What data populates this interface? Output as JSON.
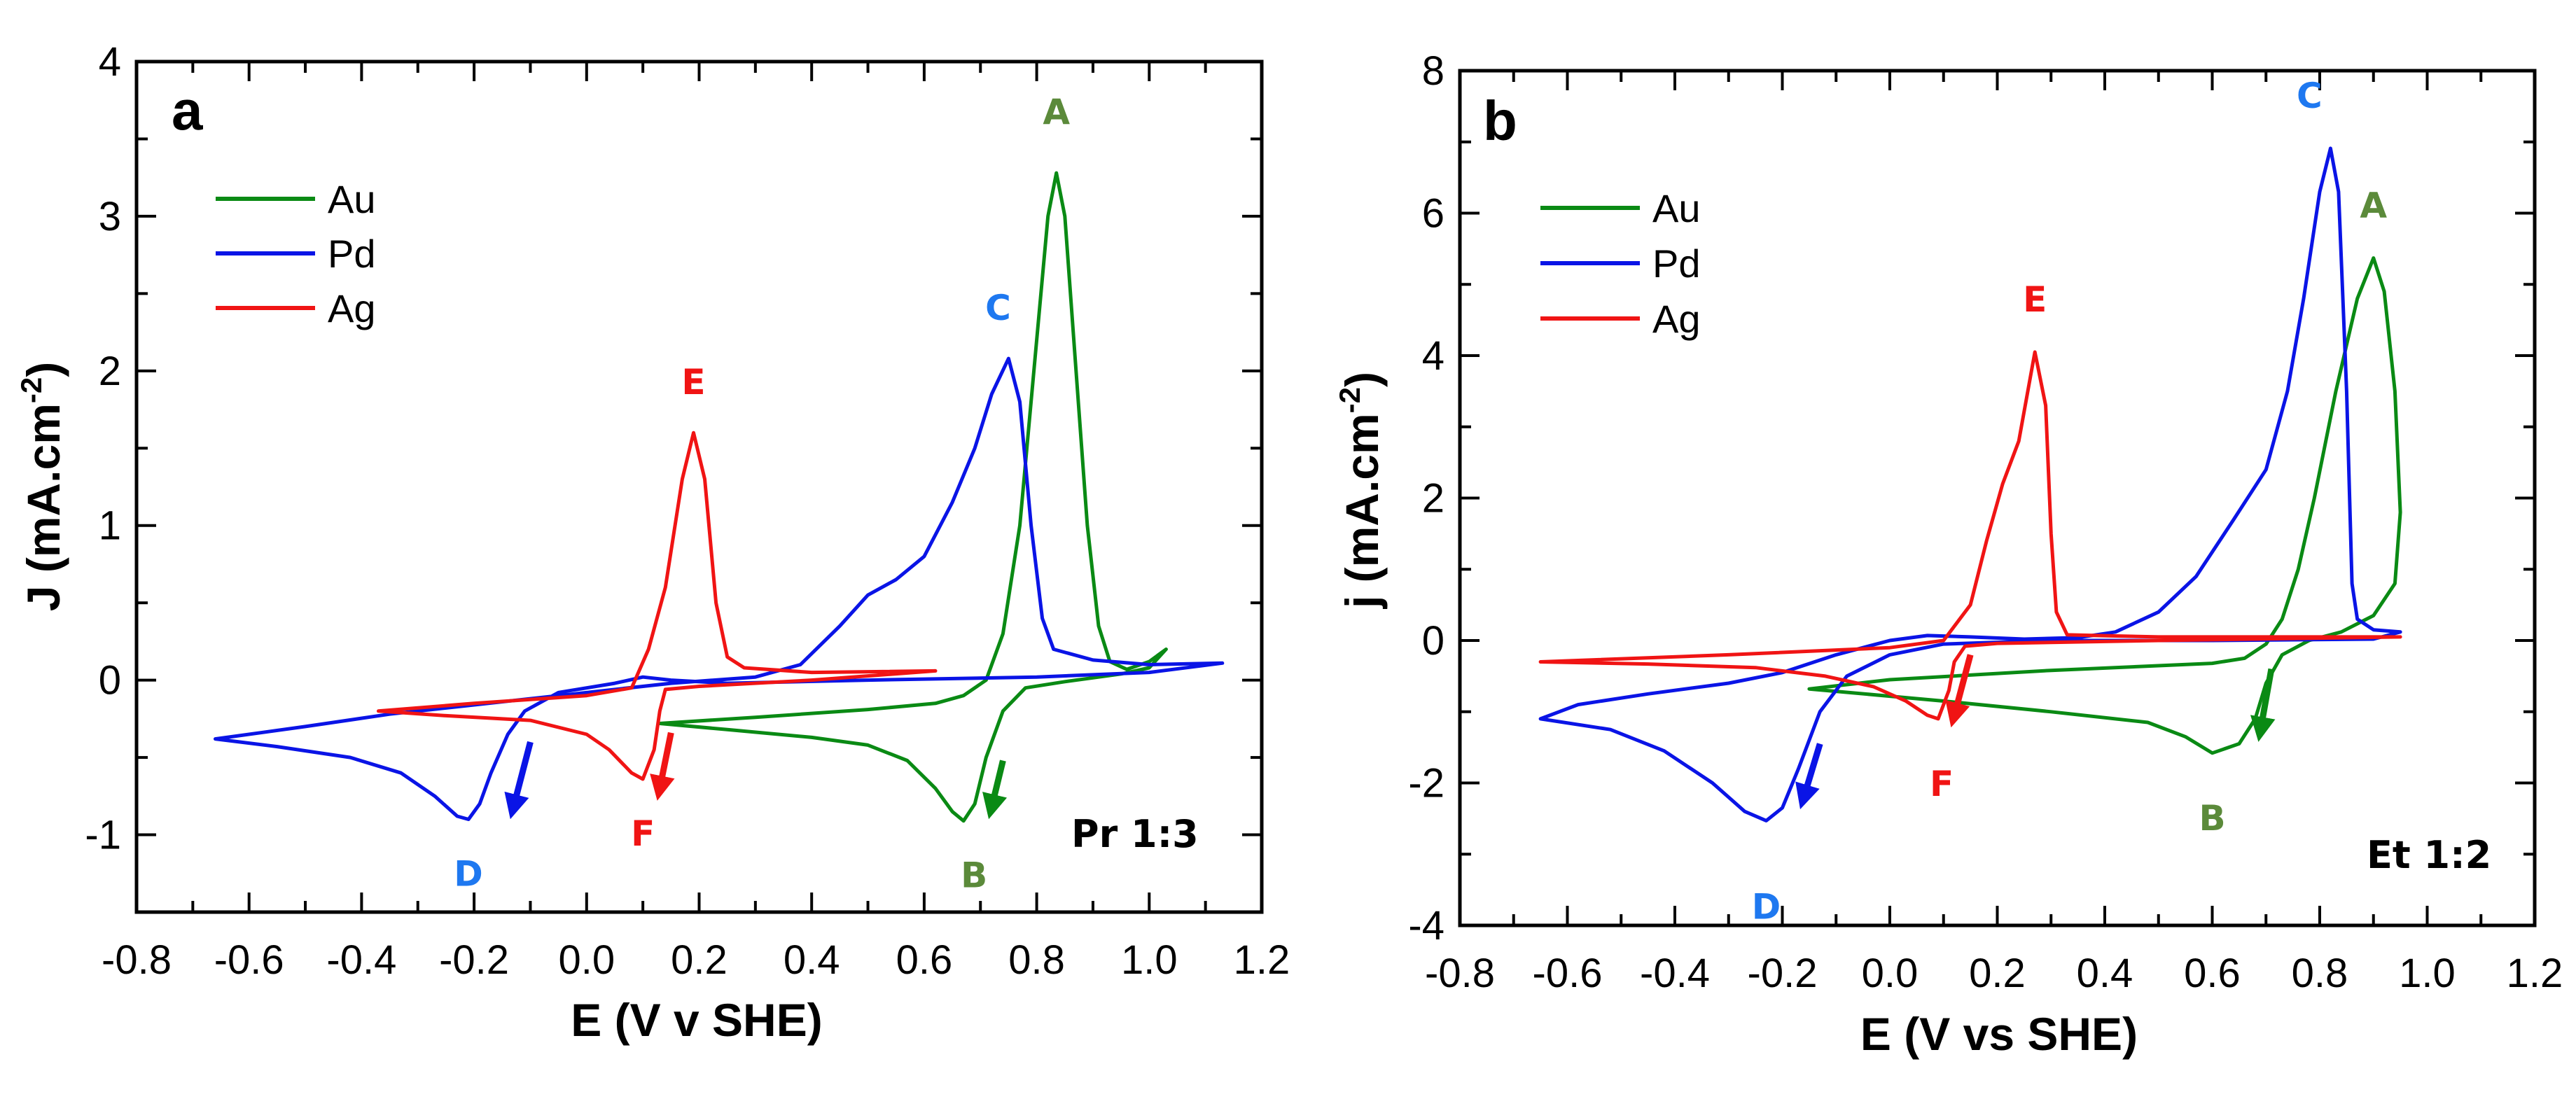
{
  "figure": {
    "colors": {
      "Au": "#0a8a14",
      "Pd": "#0a14e6",
      "Ag": "#f01414",
      "label_Au": "#5b8a3a",
      "label_Pd": "#1e78f0",
      "label_Ag": "#f01414"
    }
  },
  "chart_data": [
    {
      "type": "line",
      "panel": "a",
      "title": "",
      "condition_label": "Pr 1:3",
      "xlabel": "E (V v SHE)",
      "ylabel": "J (mA.cm-2)",
      "ylabel_main": "J (mA.cm",
      "ylabel_sup": "-2",
      "ylabel_end": ")",
      "xlim": [
        -0.8,
        1.2
      ],
      "ylim": [
        -1.5,
        4
      ],
      "xticks": [
        -0.8,
        -0.6,
        -0.4,
        -0.2,
        0.0,
        0.2,
        0.4,
        0.6,
        0.8,
        1.0,
        1.2
      ],
      "xtick_labels": [
        "-0.8",
        "-0.6",
        "-0.4",
        "-0.2",
        "0.0",
        "0.2",
        "0.4",
        "0.6",
        "0.8",
        "1.0",
        "1.2"
      ],
      "yticks": [
        -1,
        0,
        1,
        2,
        3,
        4
      ],
      "ytick_labels": [
        "-1",
        "0",
        "1",
        "2",
        "3",
        "4"
      ],
      "grid": false,
      "legend": {
        "position": "top-left",
        "entries": [
          "Au",
          "Pd",
          "Ag"
        ]
      },
      "series": [
        {
          "name": "Au",
          "points": [
            [
              0.13,
              -0.28
            ],
            [
              0.3,
              -0.24
            ],
            [
              0.5,
              -0.19
            ],
            [
              0.62,
              -0.15
            ],
            [
              0.67,
              -0.1
            ],
            [
              0.71,
              0.0
            ],
            [
              0.74,
              0.3
            ],
            [
              0.77,
              1.0
            ],
            [
              0.8,
              2.2
            ],
            [
              0.82,
              3.0
            ],
            [
              0.835,
              3.28
            ],
            [
              0.85,
              3.0
            ],
            [
              0.87,
              2.0
            ],
            [
              0.89,
              1.0
            ],
            [
              0.91,
              0.35
            ],
            [
              0.93,
              0.12
            ],
            [
              0.96,
              0.07
            ],
            [
              1.0,
              0.12
            ],
            [
              1.03,
              0.2
            ],
            [
              1.0,
              0.08
            ],
            [
              0.95,
              0.04
            ],
            [
              0.85,
              -0.01
            ],
            [
              0.78,
              -0.05
            ],
            [
              0.74,
              -0.2
            ],
            [
              0.71,
              -0.5
            ],
            [
              0.69,
              -0.8
            ],
            [
              0.67,
              -0.91
            ],
            [
              0.65,
              -0.85
            ],
            [
              0.62,
              -0.7
            ],
            [
              0.57,
              -0.52
            ],
            [
              0.5,
              -0.42
            ],
            [
              0.4,
              -0.37
            ],
            [
              0.25,
              -0.32
            ],
            [
              0.13,
              -0.28
            ]
          ]
        },
        {
          "name": "Pd",
          "points": [
            [
              -0.66,
              -0.38
            ],
            [
              -0.5,
              -0.3
            ],
            [
              -0.35,
              -0.22
            ],
            [
              -0.2,
              -0.16
            ],
            [
              0.0,
              -0.08
            ],
            [
              0.15,
              -0.02
            ],
            [
              0.3,
              0.02
            ],
            [
              0.38,
              0.1
            ],
            [
              0.45,
              0.35
            ],
            [
              0.5,
              0.55
            ],
            [
              0.55,
              0.65
            ],
            [
              0.6,
              0.8
            ],
            [
              0.65,
              1.15
            ],
            [
              0.69,
              1.5
            ],
            [
              0.72,
              1.85
            ],
            [
              0.75,
              2.08
            ],
            [
              0.77,
              1.8
            ],
            [
              0.79,
              1.0
            ],
            [
              0.81,
              0.4
            ],
            [
              0.83,
              0.2
            ],
            [
              0.9,
              0.13
            ],
            [
              1.0,
              0.1
            ],
            [
              1.13,
              0.11
            ],
            [
              1.0,
              0.05
            ],
            [
              0.8,
              0.02
            ],
            [
              0.5,
              0.0
            ],
            [
              0.25,
              -0.02
            ],
            [
              0.15,
              0.0
            ],
            [
              0.1,
              0.02
            ],
            [
              0.05,
              -0.02
            ],
            [
              -0.05,
              -0.08
            ],
            [
              -0.11,
              -0.2
            ],
            [
              -0.14,
              -0.35
            ],
            [
              -0.17,
              -0.6
            ],
            [
              -0.19,
              -0.8
            ],
            [
              -0.21,
              -0.9
            ],
            [
              -0.23,
              -0.88
            ],
            [
              -0.27,
              -0.75
            ],
            [
              -0.33,
              -0.6
            ],
            [
              -0.42,
              -0.5
            ],
            [
              -0.55,
              -0.43
            ],
            [
              -0.66,
              -0.38
            ]
          ]
        },
        {
          "name": "Ag",
          "points": [
            [
              -0.37,
              -0.2
            ],
            [
              -0.2,
              -0.15
            ],
            [
              0.0,
              -0.1
            ],
            [
              0.08,
              -0.05
            ],
            [
              0.11,
              0.2
            ],
            [
              0.14,
              0.6
            ],
            [
              0.17,
              1.3
            ],
            [
              0.19,
              1.6
            ],
            [
              0.21,
              1.3
            ],
            [
              0.23,
              0.5
            ],
            [
              0.25,
              0.15
            ],
            [
              0.28,
              0.08
            ],
            [
              0.4,
              0.05
            ],
            [
              0.62,
              0.06
            ],
            [
              0.4,
              0.0
            ],
            [
              0.2,
              -0.04
            ],
            [
              0.14,
              -0.06
            ],
            [
              0.13,
              -0.2
            ],
            [
              0.12,
              -0.45
            ],
            [
              0.1,
              -0.64
            ],
            [
              0.08,
              -0.6
            ],
            [
              0.04,
              -0.45
            ],
            [
              0.0,
              -0.35
            ],
            [
              -0.1,
              -0.26
            ],
            [
              -0.25,
              -0.23
            ],
            [
              -0.37,
              -0.2
            ]
          ]
        }
      ],
      "annotations": [
        {
          "text": "A",
          "series": "Au",
          "x": 0.835,
          "y": 3.28
        },
        {
          "text": "B",
          "series": "Au",
          "x": 0.67,
          "y": -0.91
        },
        {
          "text": "C",
          "series": "Pd",
          "x": 0.75,
          "y": 2.08
        },
        {
          "text": "D",
          "series": "Pd",
          "x": -0.21,
          "y": -0.9
        },
        {
          "text": "E",
          "series": "Ag",
          "x": 0.19,
          "y": 1.6
        },
        {
          "text": "F",
          "series": "Ag",
          "x": 0.1,
          "y": -0.64
        }
      ],
      "arrows": [
        {
          "series": "Pd",
          "from": [
            -0.1,
            -0.4
          ],
          "to": [
            -0.13,
            -0.82
          ]
        },
        {
          "series": "Ag",
          "from": [
            0.15,
            -0.34
          ],
          "to": [
            0.13,
            -0.7
          ]
        },
        {
          "series": "Au",
          "from": [
            0.74,
            -0.52
          ],
          "to": [
            0.72,
            -0.82
          ]
        }
      ]
    },
    {
      "type": "line",
      "panel": "b",
      "title": "",
      "condition_label": "Et 1:2",
      "xlabel": "E (V vs SHE)",
      "ylabel": "j (mA.cm-2)",
      "ylabel_main": "j (mA.cm",
      "ylabel_sup": "-2",
      "ylabel_end": ")",
      "xlim": [
        -0.8,
        1.2
      ],
      "ylim": [
        -4,
        8
      ],
      "xticks": [
        -0.8,
        -0.6,
        -0.4,
        -0.2,
        0.0,
        0.2,
        0.4,
        0.6,
        0.8,
        1.0,
        1.2
      ],
      "xtick_labels": [
        "-0.8",
        "-0.6",
        "-0.4",
        "-0.2",
        "0.0",
        "0.2",
        "0.4",
        "0.6",
        "0.8",
        "1.0",
        "1.2"
      ],
      "yticks": [
        -4,
        -2,
        0,
        2,
        4,
        6,
        8
      ],
      "ytick_labels": [
        "-4",
        "-2",
        "0",
        "2",
        "4",
        "6",
        "8"
      ],
      "grid": false,
      "legend": {
        "position": "top-left",
        "entries": [
          "Au",
          "Pd",
          "Ag"
        ]
      },
      "series": [
        {
          "name": "Au",
          "points": [
            [
              -0.15,
              -0.68
            ],
            [
              0.0,
              -0.55
            ],
            [
              0.3,
              -0.42
            ],
            [
              0.6,
              -0.32
            ],
            [
              0.66,
              -0.25
            ],
            [
              0.7,
              -0.05
            ],
            [
              0.73,
              0.3
            ],
            [
              0.76,
              1.0
            ],
            [
              0.79,
              2.0
            ],
            [
              0.83,
              3.5
            ],
            [
              0.87,
              4.8
            ],
            [
              0.9,
              5.37
            ],
            [
              0.92,
              4.9
            ],
            [
              0.94,
              3.5
            ],
            [
              0.95,
              1.8
            ],
            [
              0.94,
              0.8
            ],
            [
              0.9,
              0.35
            ],
            [
              0.84,
              0.12
            ],
            [
              0.78,
              0.0
            ],
            [
              0.73,
              -0.2
            ],
            [
              0.7,
              -0.6
            ],
            [
              0.68,
              -1.1
            ],
            [
              0.65,
              -1.45
            ],
            [
              0.6,
              -1.58
            ],
            [
              0.55,
              -1.35
            ],
            [
              0.48,
              -1.15
            ],
            [
              0.3,
              -1.0
            ],
            [
              0.1,
              -0.85
            ],
            [
              -0.15,
              -0.68
            ]
          ]
        },
        {
          "name": "Pd",
          "points": [
            [
              -0.65,
              -1.1
            ],
            [
              -0.58,
              -0.9
            ],
            [
              -0.45,
              -0.75
            ],
            [
              -0.3,
              -0.6
            ],
            [
              -0.2,
              -0.45
            ],
            [
              -0.1,
              -0.2
            ],
            [
              0.0,
              0.0
            ],
            [
              0.07,
              0.07
            ],
            [
              0.15,
              0.05
            ],
            [
              0.25,
              0.02
            ],
            [
              0.35,
              0.04
            ],
            [
              0.42,
              0.12
            ],
            [
              0.5,
              0.4
            ],
            [
              0.57,
              0.9
            ],
            [
              0.64,
              1.7
            ],
            [
              0.7,
              2.4
            ],
            [
              0.74,
              3.5
            ],
            [
              0.77,
              4.8
            ],
            [
              0.8,
              6.3
            ],
            [
              0.82,
              6.91
            ],
            [
              0.835,
              6.3
            ],
            [
              0.85,
              3.5
            ],
            [
              0.86,
              0.8
            ],
            [
              0.87,
              0.3
            ],
            [
              0.9,
              0.15
            ],
            [
              0.95,
              0.12
            ],
            [
              0.9,
              0.02
            ],
            [
              0.6,
              0.0
            ],
            [
              0.3,
              0.0
            ],
            [
              0.1,
              -0.05
            ],
            [
              0.0,
              -0.2
            ],
            [
              -0.08,
              -0.5
            ],
            [
              -0.13,
              -1.0
            ],
            [
              -0.17,
              -1.8
            ],
            [
              -0.2,
              -2.35
            ],
            [
              -0.23,
              -2.53
            ],
            [
              -0.27,
              -2.4
            ],
            [
              -0.33,
              -2.0
            ],
            [
              -0.42,
              -1.55
            ],
            [
              -0.52,
              -1.25
            ],
            [
              -0.65,
              -1.1
            ]
          ]
        },
        {
          "name": "Ag",
          "points": [
            [
              -0.65,
              -0.3
            ],
            [
              -0.3,
              -0.2
            ],
            [
              0.0,
              -0.1
            ],
            [
              0.1,
              0.0
            ],
            [
              0.15,
              0.5
            ],
            [
              0.18,
              1.4
            ],
            [
              0.21,
              2.2
            ],
            [
              0.24,
              2.8
            ],
            [
              0.27,
              4.05
            ],
            [
              0.29,
              3.3
            ],
            [
              0.3,
              1.5
            ],
            [
              0.31,
              0.4
            ],
            [
              0.33,
              0.08
            ],
            [
              0.5,
              0.05
            ],
            [
              0.95,
              0.05
            ],
            [
              0.5,
              0.0
            ],
            [
              0.2,
              -0.04
            ],
            [
              0.14,
              -0.08
            ],
            [
              0.12,
              -0.3
            ],
            [
              0.11,
              -0.7
            ],
            [
              0.09,
              -1.1
            ],
            [
              0.07,
              -1.05
            ],
            [
              0.03,
              -0.85
            ],
            [
              -0.03,
              -0.65
            ],
            [
              -0.12,
              -0.5
            ],
            [
              -0.25,
              -0.38
            ],
            [
              -0.45,
              -0.33
            ],
            [
              -0.65,
              -0.3
            ]
          ]
        }
      ],
      "annotations": [
        {
          "text": "A",
          "series": "Au",
          "x": 0.9,
          "y": 5.37
        },
        {
          "text": "B",
          "series": "Au",
          "x": 0.6,
          "y": -1.58
        },
        {
          "text": "C",
          "series": "Pd",
          "x": 0.82,
          "y": 6.91
        },
        {
          "text": "D",
          "series": "Pd",
          "x": -0.23,
          "y": -2.53
        },
        {
          "text": "E",
          "series": "Ag",
          "x": 0.27,
          "y": 4.05
        },
        {
          "text": "F",
          "series": "Ag",
          "x": 0.09,
          "y": -1.1
        }
      ],
      "arrows": [
        {
          "series": "Pd",
          "from": [
            -0.13,
            -1.45
          ],
          "to": [
            -0.16,
            -2.2
          ]
        },
        {
          "series": "Ag",
          "from": [
            0.15,
            -0.2
          ],
          "to": [
            0.12,
            -1.05
          ]
        },
        {
          "series": "Au",
          "from": [
            0.71,
            -0.4
          ],
          "to": [
            0.69,
            -1.25
          ]
        }
      ]
    }
  ]
}
